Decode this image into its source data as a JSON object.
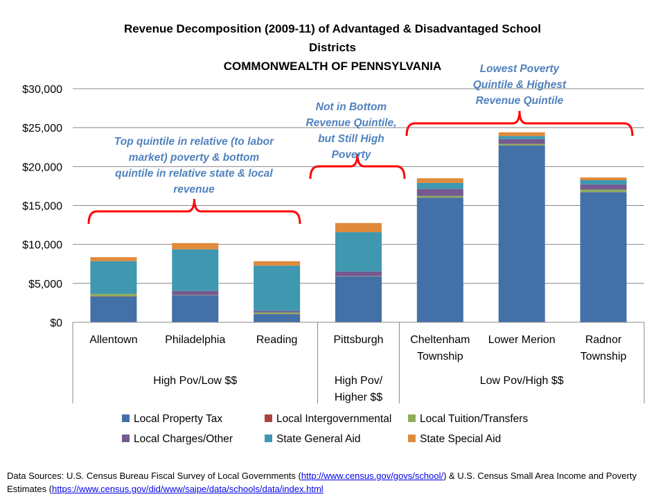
{
  "chart_data": {
    "type": "bar",
    "stacked": true,
    "title_lines": [
      "Revenue Decomposition (2009-11) of Advantaged & Disadvantaged School",
      "Districts",
      "COMMONWEALTH  OF PENNSYLVANIA"
    ],
    "ylim": [
      0,
      30000
    ],
    "yticks": [
      0,
      5000,
      10000,
      15000,
      20000,
      25000,
      30000
    ],
    "ytick_labels": [
      "$0",
      "$5,000",
      "$10,000",
      "$15,000",
      "$20,000",
      "$25,000",
      "$30,000"
    ],
    "grid": true,
    "categories": [
      [
        "Allentown"
      ],
      [
        "Philadelphia"
      ],
      [
        "Reading"
      ],
      [
        "Pittsburgh"
      ],
      [
        "Cheltenham",
        "Township"
      ],
      [
        "Lower Merion"
      ],
      [
        "Radnor",
        "Township"
      ]
    ],
    "groups": [
      {
        "label": [
          "High Pov/Low $$"
        ],
        "count": 3
      },
      {
        "label": [
          "High Pov/",
          "Higher $$"
        ],
        "count": 1
      },
      {
        "label": [
          "Low Pov/High $$"
        ],
        "count": 3
      }
    ],
    "series": [
      {
        "name": "Local Property Tax",
        "color": "#4470a8",
        "values": [
          3300,
          3450,
          1040,
          5900,
          16000,
          22700,
          16700
        ]
      },
      {
        "name": "Local Intergovernmental",
        "color": "#a94442",
        "values": [
          50,
          20,
          20,
          20,
          20,
          20,
          20
        ]
      },
      {
        "name": "Local Tuition/Transfers",
        "color": "#8fac5a",
        "values": [
          300,
          30,
          200,
          30,
          200,
          200,
          330
        ]
      },
      {
        "name": "Local Charges/Other",
        "color": "#745a91",
        "values": [
          0,
          530,
          200,
          570,
          900,
          600,
          650
        ]
      },
      {
        "name": "State General Aid",
        "color": "#3f98b0",
        "values": [
          4200,
          5340,
          5820,
          5050,
          780,
          400,
          550
        ]
      },
      {
        "name": "State Special Aid",
        "color": "#e08a3c",
        "values": [
          510,
          800,
          560,
          1180,
          600,
          480,
          350
        ]
      }
    ],
    "legend_position": "bottom",
    "annotations": [
      {
        "lines": [
          "Top quintile in relative (to labor",
          "market) poverty & bottom",
          "quintile in relative state & local",
          "revenue"
        ],
        "span": [
          0,
          2
        ]
      },
      {
        "lines": [
          "Not in Bottom",
          "Revenue Quintile,",
          "but Still High",
          "Poverty"
        ],
        "span": [
          3,
          3
        ]
      },
      {
        "lines": [
          "Lowest Poverty",
          "Quintile & Highest",
          "Revenue Quintile"
        ],
        "span": [
          4,
          6
        ]
      }
    ],
    "annotation_color": "#ff0000"
  },
  "footer": {
    "prefix": "Data Sources: U.S. Census Bureau Fiscal Survey of Local Governments  (",
    "link1": "http://www.census.gov/govs/school/",
    "middle": ") & U.S. Census Small Area Income and Poverty Estimates (",
    "link2": "https://www.census.gov/did/www/saipe/data/schools/data/index.html"
  }
}
